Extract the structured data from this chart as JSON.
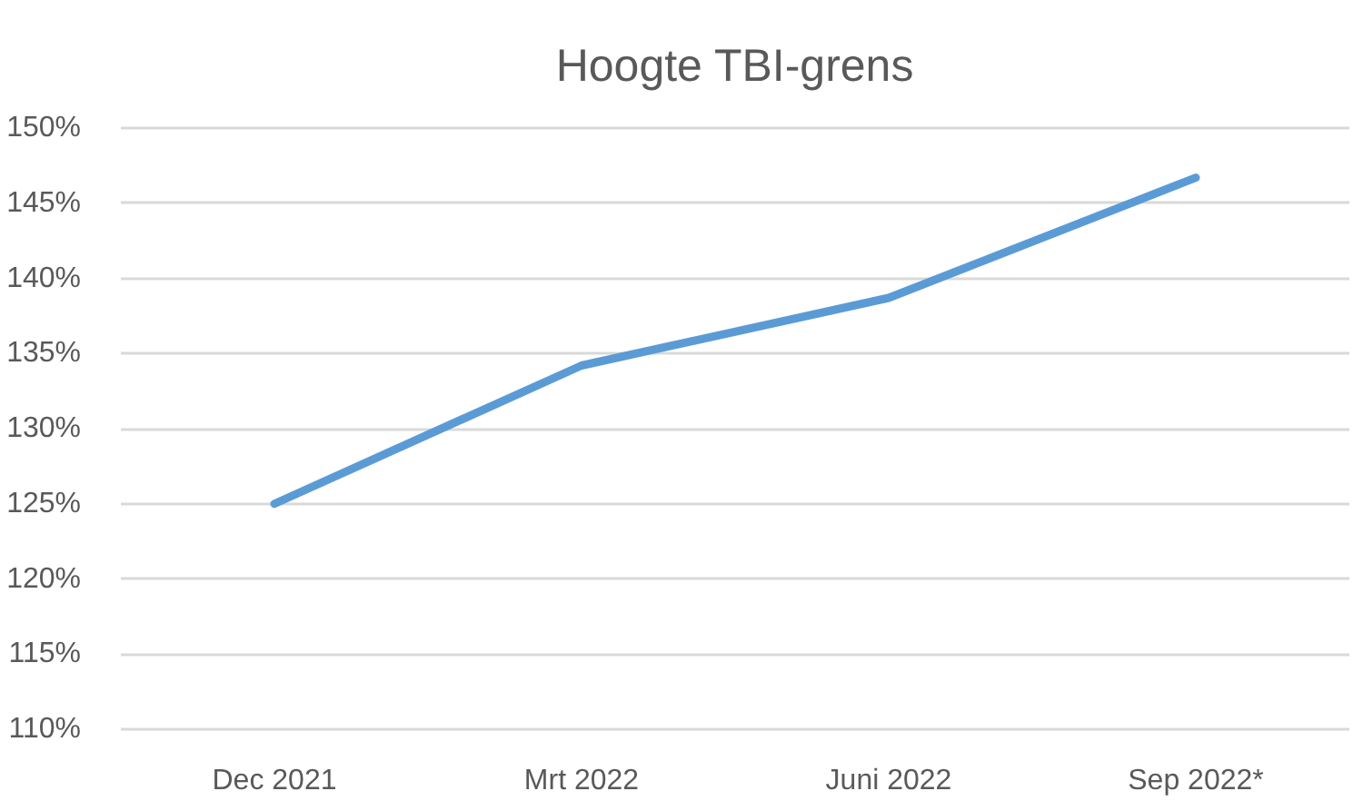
{
  "chart_data": {
    "type": "line",
    "title": "Hoogte TBI-grens",
    "categories": [
      "Dec 2021",
      "Mrt 2022",
      "Juni 2022",
      "Sep 2022*"
    ],
    "series": [
      {
        "color": "#5b9bd5",
        "values": [
          125,
          134.2,
          138.7,
          146.7
        ]
      }
    ],
    "ylim": [
      110,
      150
    ],
    "yticks": [
      {
        "value": 110,
        "label": "110%"
      },
      {
        "value": 115,
        "label": "115%"
      },
      {
        "value": 120,
        "label": "120%"
      },
      {
        "value": 125,
        "label": "125%"
      },
      {
        "value": 130,
        "label": "130%"
      },
      {
        "value": 135,
        "label": "135%"
      },
      {
        "value": 140,
        "label": "140%"
      },
      {
        "value": 145,
        "label": "145%"
      },
      {
        "value": 150,
        "label": "150%"
      }
    ],
    "grid": "y"
  }
}
